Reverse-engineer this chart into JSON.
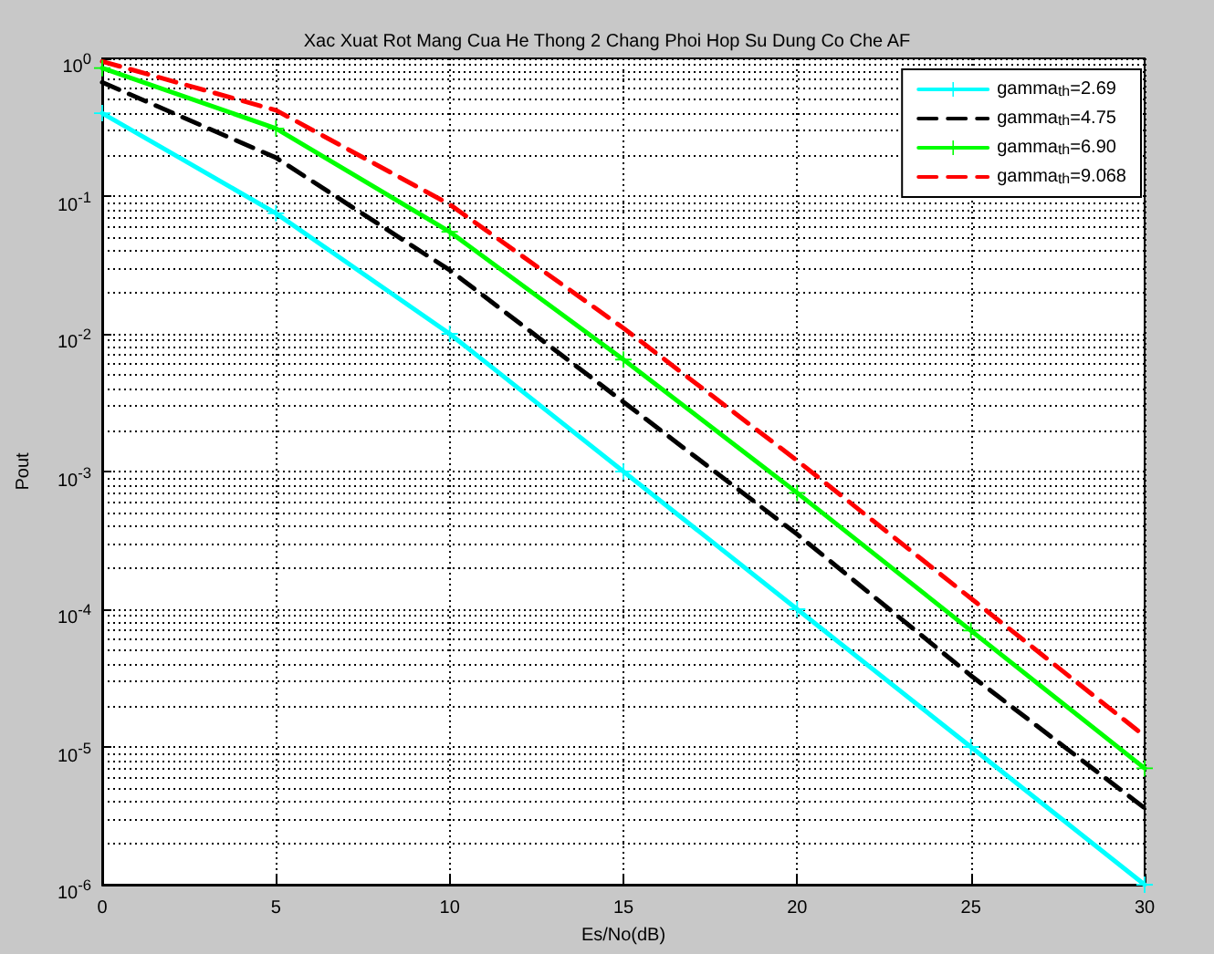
{
  "chart_data": {
    "type": "line",
    "title": "Xac Xuat Rot Mang Cua He Thong 2 Chang Phoi Hop Su Dung Co Che AF",
    "xlabel": "Es/No(dB)",
    "ylabel": "Pout",
    "x": [
      0,
      5,
      10,
      15,
      20,
      25,
      30
    ],
    "series": [
      {
        "name": "gamma$_{th}$=2.69",
        "color": "#00ffff",
        "marker": "cross",
        "line_style": "solid",
        "values": [
          0.4,
          0.075,
          0.01,
          0.001,
          0.0001,
          1e-05,
          1e-06
        ]
      },
      {
        "name": "gamma$_{th}$=4.75",
        "color": "#000000",
        "marker": "none",
        "line_style": "dashed",
        "values": [
          0.67,
          0.19,
          0.029,
          0.0032,
          0.00035,
          3.3e-05,
          3.6e-06
        ]
      },
      {
        "name": "gamma$_{th}$=6.90",
        "color": "#00ff00",
        "marker": "cross",
        "line_style": "solid",
        "values": [
          0.85,
          0.31,
          0.055,
          0.0065,
          0.0007,
          7e-05,
          7e-06
        ]
      },
      {
        "name": "gamma$_{th}$=9.068",
        "color": "#ff0000",
        "marker": "none",
        "line_style": "dashed",
        "values": [
          0.95,
          0.42,
          0.087,
          0.011,
          0.0012,
          0.00012,
          1.2e-05
        ]
      }
    ],
    "xlim": [
      0,
      30
    ],
    "xticks": [
      0,
      5,
      10,
      15,
      20,
      25,
      30
    ],
    "ylim": [
      1e-06,
      1
    ],
    "yticks": [
      {
        "value": 1e-06,
        "label": "10$^{-6}$"
      },
      {
        "value": 1e-05,
        "label": "10$^{-5}$"
      },
      {
        "value": 0.0001,
        "label": "10$^{-4}$"
      },
      {
        "value": 0.001,
        "label": "10$^{-3}$"
      },
      {
        "value": 0.01,
        "label": "10$^{-2}$"
      },
      {
        "value": 0.1,
        "label": "10$^{-1}$"
      },
      {
        "value": 1,
        "label": "10$^{0}$"
      }
    ],
    "log": "y",
    "grid": true,
    "legend": "top right"
  }
}
